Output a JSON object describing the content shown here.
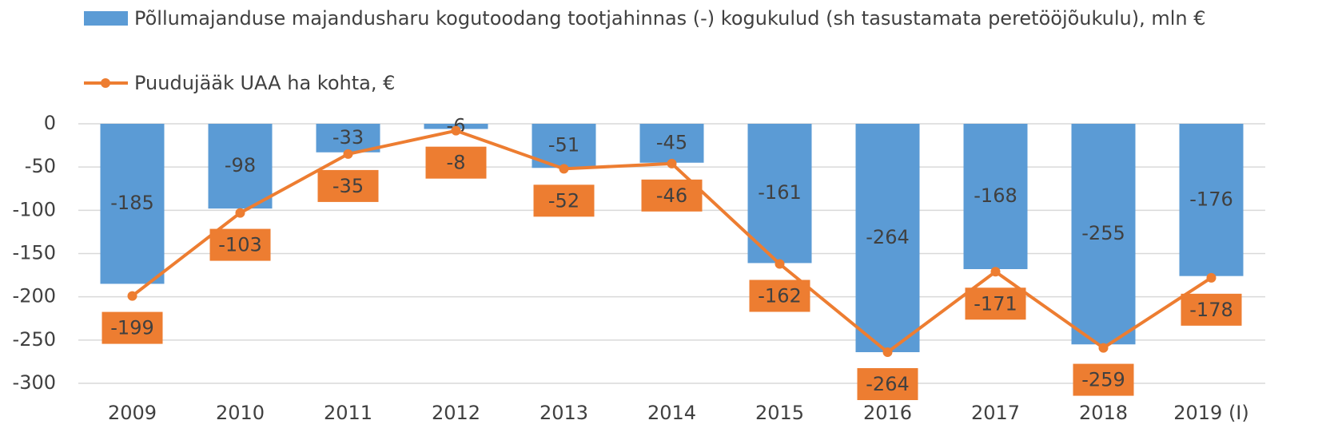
{
  "chart_data": {
    "type": "bar-line",
    "categories": [
      "2009",
      "2010",
      "2011",
      "2012",
      "2013",
      "2014",
      "2015",
      "2016",
      "2017",
      "2018",
      "2019 (I)"
    ],
    "series": [
      {
        "name": "Põllumajanduse majandusharu kogutoodang tootjahinnas (-) kogukulud (sh tasustamata peretööjõukulu), mln €",
        "type": "bar",
        "color": "#5b9bd5",
        "values": [
          -185,
          -98,
          -33,
          -6,
          -51,
          -45,
          -161,
          -264,
          -168,
          -255,
          -176
        ]
      },
      {
        "name": "Puudujääk UAA ha kohta, €",
        "type": "line",
        "color": "#ed7d31",
        "values": [
          -199,
          -103,
          -35,
          -8,
          -52,
          -46,
          -162,
          -264,
          -171,
          -259,
          -178
        ]
      }
    ],
    "ylim": [
      -300,
      0
    ],
    "yticks": [
      0,
      -50,
      -100,
      -150,
      -200,
      -250,
      -300
    ],
    "grid": true
  }
}
